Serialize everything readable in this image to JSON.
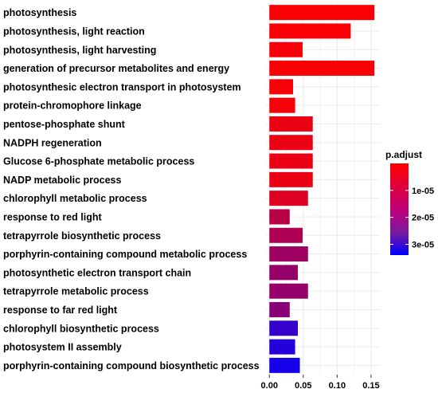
{
  "chart_data": {
    "type": "bar",
    "orientation": "horizontal",
    "categories": [
      "photosynthesis",
      "photosynthesis, light reaction",
      "photosynthesis, light harvesting",
      "generation of precursor metabolites and energy",
      "photosynthesic electron transport in photosystem",
      "protein-chromophore linkage",
      "pentose-phosphate shunt",
      "NADPH regeneration",
      "Glucose 6-phosphate metabolic process",
      "NADP metabolic process",
      "chlorophyll metabolic process",
      "response to red light",
      "tetrapyrrole biosynthetic process",
      "porphyrin-containing compound metabolic process",
      "photosynthetic electron transport chain",
      "tetrapyrrole metabolic process",
      "response to far red light",
      "chlorophyll biosynthetic process",
      "photosystem II assembly",
      "porphyrin-containing compound biosynthetic process"
    ],
    "values": [
      0.155,
      0.12,
      0.049,
      0.155,
      0.035,
      0.038,
      0.064,
      0.064,
      0.064,
      0.064,
      0.057,
      0.03,
      0.049,
      0.057,
      0.042,
      0.057,
      0.03,
      0.042,
      0.038,
      0.045
    ],
    "p_adjust": [
      5e-07,
      8e-07,
      1e-06,
      8e-07,
      1e-06,
      1.2e-06,
      2.5e-06,
      2.5e-06,
      2.5e-06,
      2.5e-06,
      4.5e-06,
      9.5e-06,
      1.1e-05,
      1.3e-05,
      1.4e-05,
      1.4e-05,
      1.6e-05,
      2.7e-05,
      2.9e-05,
      3.1e-05
    ],
    "xlim": [
      -0.005,
      0.163
    ],
    "xticks": [
      "0.00",
      "0.05",
      "0.10",
      "0.15"
    ],
    "xtick_values": [
      0,
      0.05,
      0.1,
      0.15
    ],
    "grid": true,
    "legend": {
      "title": "p.adjust",
      "placement": "right",
      "range": [
        0,
        3.4e-05
      ],
      "ticks": [
        "1e-05",
        "2e-05",
        "3e-05"
      ],
      "tick_values": [
        1e-05,
        2e-05,
        3e-05
      ],
      "color_low": "#ff0000",
      "color_high": "#0000ff"
    }
  }
}
